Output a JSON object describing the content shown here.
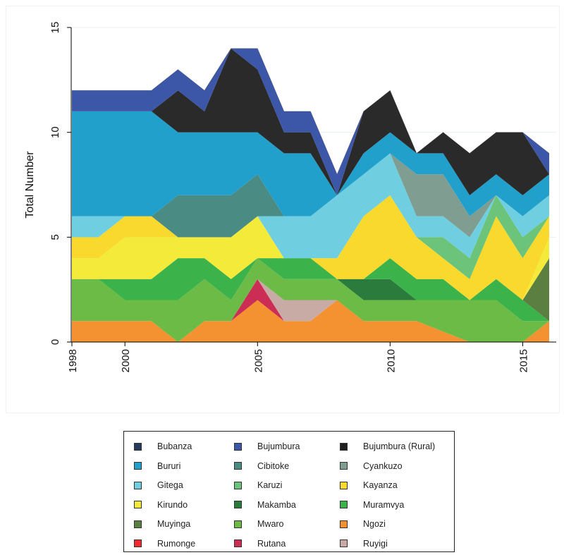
{
  "chart_data": {
    "type": "area",
    "stacked": true,
    "xlabel": "",
    "ylabel": "Total Number",
    "xlim": [
      1998,
      2016
    ],
    "ylim": [
      0,
      15
    ],
    "xticks": [
      1998,
      2000,
      2005,
      2010,
      2015
    ],
    "yticks": [
      0,
      5,
      10,
      15
    ],
    "grid": "horizontal",
    "legend_position": "bottom",
    "x": [
      1998,
      1999,
      2000,
      2001,
      2002,
      2003,
      2004,
      2005,
      2006,
      2007,
      2008,
      2009,
      2010,
      2011,
      2012,
      2013,
      2014,
      2015,
      2016
    ],
    "series": [
      {
        "name": "Ngozi",
        "color": "#f49131",
        "values": [
          1,
          1,
          1,
          1,
          0,
          1,
          1,
          2,
          1,
          1,
          2,
          1,
          1,
          1,
          0.5,
          0,
          0,
          0,
          1
        ]
      },
      {
        "name": "Rumonge",
        "color": "#ef2b2e",
        "values": [
          0,
          0,
          0,
          0,
          0,
          0,
          0,
          0,
          0,
          0,
          0,
          0,
          0,
          0,
          0,
          0,
          0,
          0,
          0
        ]
      },
      {
        "name": "Rutana",
        "color": "#cc2d55",
        "values": [
          0,
          0,
          0,
          0,
          0,
          0,
          0,
          1,
          0,
          0,
          0,
          0,
          0,
          0,
          0,
          0,
          0,
          0,
          0
        ]
      },
      {
        "name": "Ruyigi",
        "color": "#c8aba4",
        "values": [
          0,
          0,
          0,
          0,
          0,
          0,
          0,
          0,
          1,
          1,
          0,
          0,
          0,
          0,
          0,
          0,
          0,
          0,
          0
        ]
      },
      {
        "name": "Mwaro",
        "color": "#6cbb46",
        "values": [
          2,
          2,
          1,
          1,
          2,
          2,
          1,
          1,
          1,
          1,
          1,
          1,
          1,
          1,
          1.5,
          2,
          2,
          1,
          0
        ]
      },
      {
        "name": "Makamba",
        "color": "#2b7c3c",
        "values": [
          0,
          0,
          0,
          0,
          0,
          0,
          0,
          0,
          0,
          0,
          0,
          1,
          1,
          0,
          0,
          0,
          0,
          0,
          0
        ]
      },
      {
        "name": "Muramvya",
        "color": "#3bb34a",
        "values": [
          0,
          0,
          1,
          1,
          2,
          1,
          1,
          0,
          1,
          1,
          0,
          0,
          1,
          1,
          1,
          0,
          1,
          1,
          0
        ]
      },
      {
        "name": "Muyinga",
        "color": "#5a7f40",
        "values": [
          0,
          0,
          0,
          0,
          0,
          0,
          0,
          0,
          0,
          0,
          0,
          0,
          0,
          0,
          0,
          0,
          0,
          0,
          3
        ]
      },
      {
        "name": "Kirundo",
        "color": "#f3ea3a",
        "values": [
          1,
          1,
          2,
          2,
          1,
          1,
          2,
          2,
          0,
          0,
          0,
          0,
          0,
          0,
          0,
          0,
          0,
          0,
          1
        ]
      },
      {
        "name": "Kayanza",
        "color": "#f9d92d",
        "values": [
          1,
          1,
          1,
          1,
          0,
          0,
          0,
          0,
          0,
          0,
          1,
          3,
          3,
          2,
          1,
          1,
          3,
          2,
          1
        ]
      },
      {
        "name": "Karuzi",
        "color": "#6cc47a",
        "values": [
          0,
          0,
          0,
          0,
          0,
          0,
          0,
          0,
          0,
          0,
          0,
          0,
          0,
          0,
          1,
          1,
          1,
          1,
          0
        ]
      },
      {
        "name": "Gitega",
        "color": "#6fcfe0",
        "values": [
          1,
          1,
          0,
          0,
          0,
          0,
          0,
          0,
          2,
          2,
          3,
          2,
          2,
          1,
          1,
          1,
          0,
          1,
          1
        ]
      },
      {
        "name": "Cyankuzo",
        "color": "#7f9e91",
        "values": [
          0,
          0,
          0,
          0,
          0,
          0,
          0,
          0,
          0,
          0,
          0,
          0,
          0,
          2,
          2,
          1,
          0,
          0,
          0
        ]
      },
      {
        "name": "Cibitoke",
        "color": "#4a8b84",
        "values": [
          0,
          0,
          0,
          0,
          2,
          2,
          2,
          2,
          0,
          0,
          0,
          0,
          0,
          0,
          0,
          0,
          0,
          0,
          0
        ]
      },
      {
        "name": "Bururi",
        "color": "#22a0cc",
        "values": [
          5,
          5,
          5,
          5,
          3,
          3,
          3,
          2,
          3,
          3,
          0,
          1,
          1,
          1,
          1,
          1,
          1,
          1,
          1
        ]
      },
      {
        "name": "Bubanza",
        "color": "#263a5c",
        "values": [
          0,
          0,
          0,
          0,
          0,
          0,
          0,
          0,
          0,
          0,
          0,
          0,
          0,
          0,
          0,
          0,
          0,
          0,
          0
        ]
      },
      {
        "name": "Bujumbura (Rural)",
        "color": "#2a2a2a",
        "values": [
          0,
          0,
          0,
          0,
          2,
          1,
          4,
          3,
          1,
          1,
          0,
          2,
          2,
          0,
          1,
          2,
          2,
          3,
          0
        ]
      },
      {
        "name": "Bujumbura",
        "color": "#3d57a8",
        "values": [
          1,
          1,
          1,
          1,
          1,
          1,
          0,
          1,
          1,
          1,
          1,
          0,
          0,
          0,
          0,
          0,
          0,
          0,
          1
        ]
      }
    ]
  },
  "legend": {
    "items": [
      {
        "label": "Bubanza",
        "color": "#263a5c"
      },
      {
        "label": "Bujumbura",
        "color": "#3d57a8"
      },
      {
        "label": "Bujumbura (Rural)",
        "color": "#1e1e1e"
      },
      {
        "label": "Bururi",
        "color": "#22a0cc"
      },
      {
        "label": "Cibitoke",
        "color": "#4a8b84"
      },
      {
        "label": "Cyankuzo",
        "color": "#7f9e91"
      },
      {
        "label": "Gitega",
        "color": "#6fcfe0"
      },
      {
        "label": "Karuzi",
        "color": "#6cc47a"
      },
      {
        "label": "Kayanza",
        "color": "#f9d92d"
      },
      {
        "label": "Kirundo",
        "color": "#f3ea3a"
      },
      {
        "label": "Makamba",
        "color": "#2b7c3c"
      },
      {
        "label": "Muramvya",
        "color": "#3bb34a"
      },
      {
        "label": "Muyinga",
        "color": "#5a7f40"
      },
      {
        "label": "Mwaro",
        "color": "#6cbb46"
      },
      {
        "label": "Ngozi",
        "color": "#f49131"
      },
      {
        "label": "Rumonge",
        "color": "#ef2b2e"
      },
      {
        "label": "Rutana",
        "color": "#cc2d55"
      },
      {
        "label": "Ruyigi",
        "color": "#c8aba4"
      }
    ]
  }
}
